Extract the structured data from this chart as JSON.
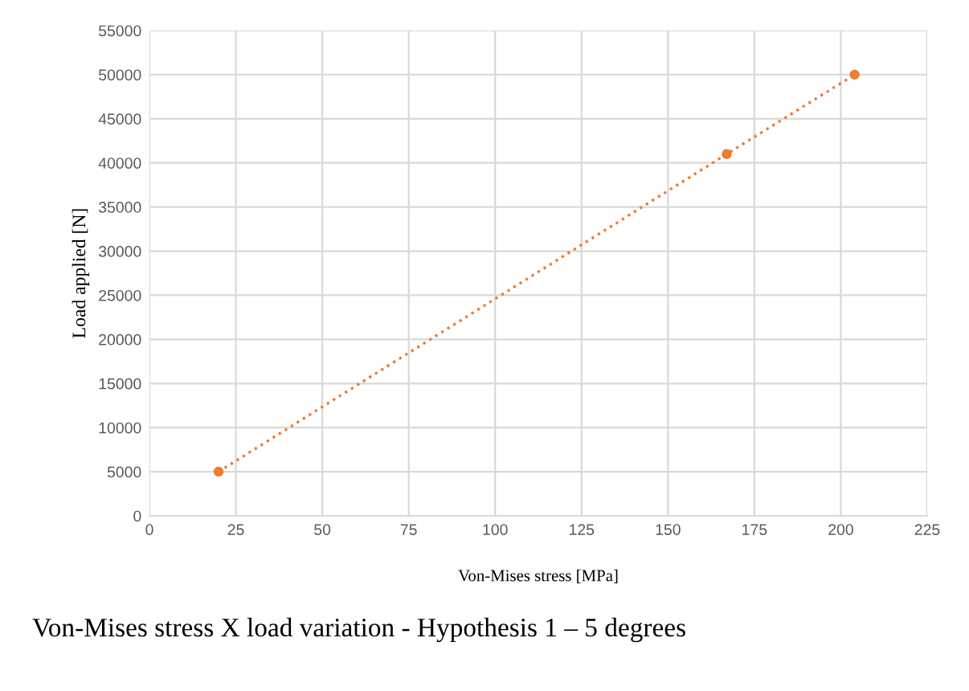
{
  "chart_data": {
    "type": "line",
    "xlabel": "Von-Mises stress [MPa]",
    "ylabel": "Load applied [N]",
    "annotations": [
      "Von-Mises stress X load variation - Hypothesis 1 – 5 degrees"
    ],
    "series": [
      {
        "x": [
          20,
          167,
          204
        ],
        "values": [
          5000,
          41000,
          50000
        ],
        "color": "#ed7d31"
      }
    ],
    "xlim": [
      0,
      225
    ],
    "xticks": [
      0,
      25,
      50,
      75,
      100,
      125,
      150,
      175,
      200,
      225
    ],
    "ylim": [
      0,
      55000
    ],
    "yticks": [
      0,
      5000,
      10000,
      15000,
      20000,
      25000,
      30000,
      35000,
      40000,
      45000,
      50000,
      55000
    ],
    "grid": true,
    "marker": "circle",
    "line_style": "dotted",
    "legend": false
  }
}
